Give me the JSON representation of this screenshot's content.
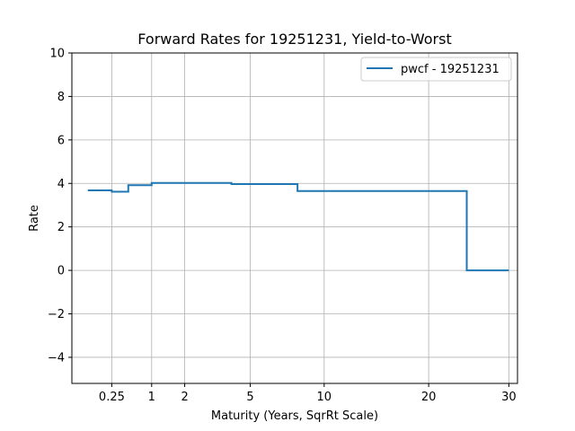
{
  "chart_data": {
    "type": "line",
    "title": "Forward Rates for 19251231, Yield-to-Worst",
    "xlabel": "Maturity (Years, SqrRt Scale)",
    "ylabel": "Rate",
    "x_scale": "sqrt",
    "xlim": [
      0.0,
      31.2
    ],
    "ylim": [
      -5.2,
      10
    ],
    "x_ticks": [
      0.25,
      1,
      2,
      5,
      10,
      20,
      30
    ],
    "x_tick_labels": [
      "0.25",
      "1",
      "2",
      "5",
      "10",
      "20",
      "30"
    ],
    "y_ticks": [
      -4,
      -2,
      0,
      2,
      4,
      6,
      8,
      10
    ],
    "y_tick_labels": [
      "−4",
      "−2",
      "0",
      "2",
      "4",
      "6",
      "8",
      "10"
    ],
    "grid": true,
    "legend_position": "top-right",
    "series": [
      {
        "name": "pwcf - 19251231",
        "color": "#1f77b4",
        "style": "step",
        "x": [
          0.04,
          0.25,
          0.25,
          0.5,
          0.5,
          1.0,
          1.0,
          4.0,
          4.0,
          8.0,
          8.0,
          24.5,
          24.5,
          30.0
        ],
        "y": [
          3.68,
          3.68,
          3.62,
          3.62,
          3.92,
          3.92,
          4.02,
          4.02,
          3.97,
          3.97,
          3.65,
          3.65,
          0.0,
          0.0
        ]
      }
    ]
  }
}
